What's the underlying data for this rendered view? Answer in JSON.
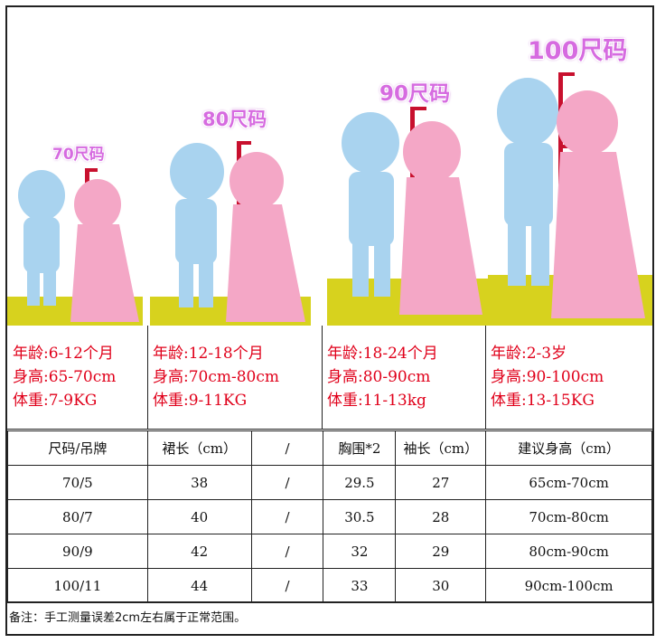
{
  "panels": [
    {
      "size_label": "70尺码",
      "age": "年龄:6-12个月",
      "height": "身高:65-70cm",
      "weight": "体重:7-9KG"
    },
    {
      "size_label": "80尺码",
      "age": "年龄:12-18个月",
      "height": "身高:70cm-80cm",
      "weight": "体重:9-11KG"
    },
    {
      "size_label": "90尺码",
      "age": "年龄:18-24个月",
      "height": "身高:80-90cm",
      "weight": "体重:11-13kg"
    },
    {
      "size_label": "100尺码",
      "age": "年龄:2-3岁",
      "height": "身高:90-100cm",
      "weight": "体重:13-15KG"
    }
  ],
  "table": {
    "headers": [
      "尺码/吊牌",
      "裙长（cm）",
      "/",
      "胸围*2",
      "袖长（cm）",
      "建议身高（cm）"
    ],
    "rows": [
      [
        "70/5",
        "38",
        "/",
        "29.5",
        "27",
        "65cm-70cm"
      ],
      [
        "80/7",
        "40",
        "/",
        "30.5",
        "28",
        "70cm-80cm"
      ],
      [
        "90/9",
        "42",
        "/",
        "32",
        "29",
        "80cm-90cm"
      ],
      [
        "100/11",
        "44",
        "/",
        "33",
        "30",
        "90cm-100cm"
      ]
    ]
  },
  "note": "备注：手工测量误差2cm左右属于正常范围。",
  "colors": {
    "boy": "#a9d3ef",
    "girl": "#f4a7c6",
    "ruler": "#c8102e",
    "floor": "#d7d21e",
    "label": "#d66be0",
    "info_text": "#e0001a"
  }
}
